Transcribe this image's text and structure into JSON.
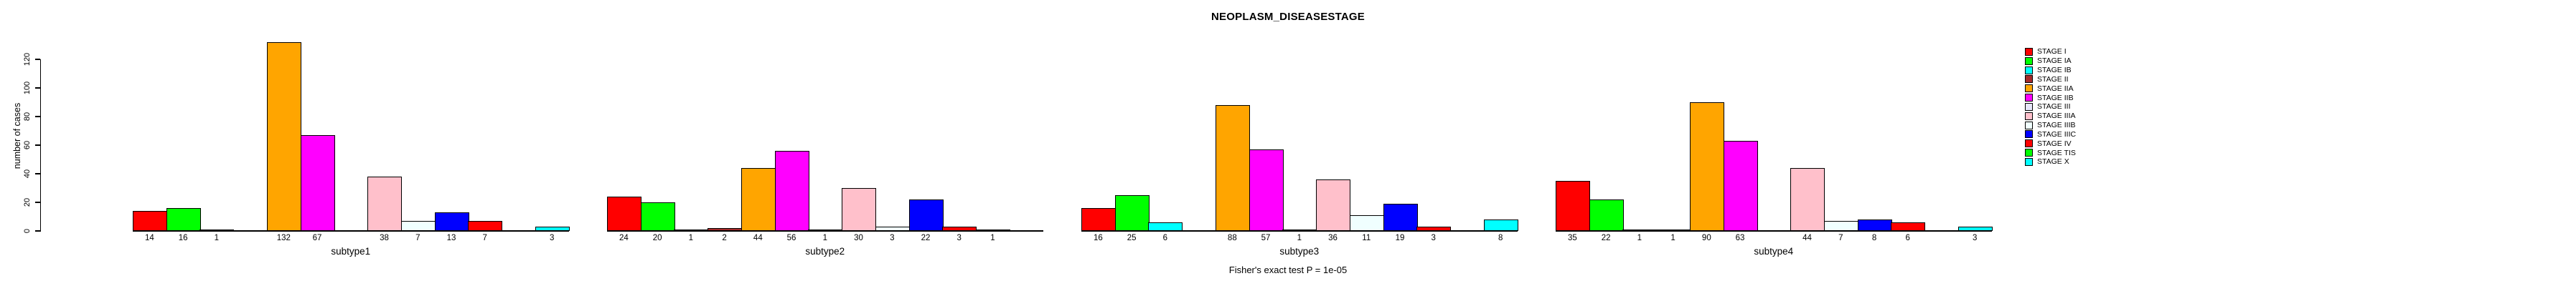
{
  "title": "NEOPLASM_DISEASESTAGE",
  "chart_data": {
    "type": "bar",
    "title": "NEOPLASM_DISEASESTAGE",
    "ylabel": "number of cases",
    "xlabel": "",
    "ylim": [
      0,
      120
    ],
    "yticks": [
      0,
      20,
      40,
      60,
      80,
      100,
      120
    ],
    "grid": false,
    "legend_position": "right",
    "caption": "Fisher's exact test P = 1e-05",
    "categories": [
      "STAGE I",
      "STAGE IA",
      "STAGE IB",
      "STAGE II",
      "STAGE IIA",
      "STAGE IIB",
      "STAGE III",
      "STAGE IIIA",
      "STAGE IIIB",
      "STAGE IIIC",
      "STAGE IV",
      "STAGE TIS",
      "STAGE X"
    ],
    "colors": [
      "#FF0000",
      "#00FF00",
      "#00FFFF",
      "#A52A2A",
      "#FFA500",
      "#FF00FF",
      "#E6E6FA",
      "#FFC0CB",
      "#F0FFFF",
      "#0000FF",
      "#FF0000",
      "#00FF00",
      "#00FFFF"
    ],
    "groups": [
      {
        "label": "subtype1",
        "values": [
          14,
          16,
          1,
          0,
          132,
          67,
          0,
          38,
          7,
          13,
          7,
          0,
          3
        ]
      },
      {
        "label": "subtype2",
        "values": [
          24,
          20,
          1,
          2,
          44,
          56,
          1,
          30,
          3,
          22,
          3,
          1,
          0
        ]
      },
      {
        "label": "subtype3",
        "values": [
          16,
          25,
          6,
          0,
          88,
          57,
          1,
          36,
          11,
          19,
          3,
          0,
          8
        ]
      },
      {
        "label": "subtype4",
        "values": [
          35,
          22,
          1,
          1,
          90,
          63,
          0,
          44,
          7,
          8,
          6,
          0,
          3
        ]
      }
    ]
  }
}
